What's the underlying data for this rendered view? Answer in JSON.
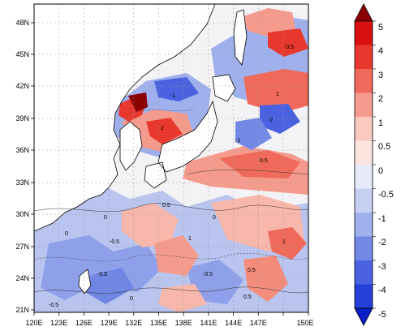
{
  "map": {
    "lon_ticks": [
      "120E",
      "123E",
      "126E",
      "129E",
      "132E",
      "135E",
      "138E",
      "141E",
      "144E",
      "147E",
      "150E"
    ],
    "lat_ticks": [
      "48N",
      "45N",
      "42N",
      "39N",
      "36N",
      "33N",
      "30N",
      "27N",
      "24N",
      "21N"
    ],
    "contour_labels": [
      "0",
      "0.5",
      "-0.5",
      "1",
      "-1",
      "2",
      "-2",
      "-0.5",
      "0.5",
      "0",
      "0.5",
      "-0.5",
      "1",
      "0",
      "-0.5",
      "0.5",
      "-1",
      "1",
      "0",
      "-0.5"
    ],
    "colors": {
      "ocean_background": "#f7f7f7",
      "land": "#ffffff",
      "coastline": "#000000"
    }
  },
  "colorbar": {
    "labels": [
      "5",
      "4",
      "3",
      "2",
      "1",
      "0.5",
      "0",
      "-0.5",
      "-1",
      "-2",
      "-3",
      "-4",
      "-5"
    ],
    "colors": [
      "#8b0000",
      "#d9100f",
      "#e8382e",
      "#ef6a5a",
      "#f59b8d",
      "#fac9c0",
      "#ffffff",
      "#c8d0f2",
      "#9fb0ec",
      "#7489e6",
      "#4a62e0",
      "#2440d8",
      "#0a1ec8"
    ]
  }
}
